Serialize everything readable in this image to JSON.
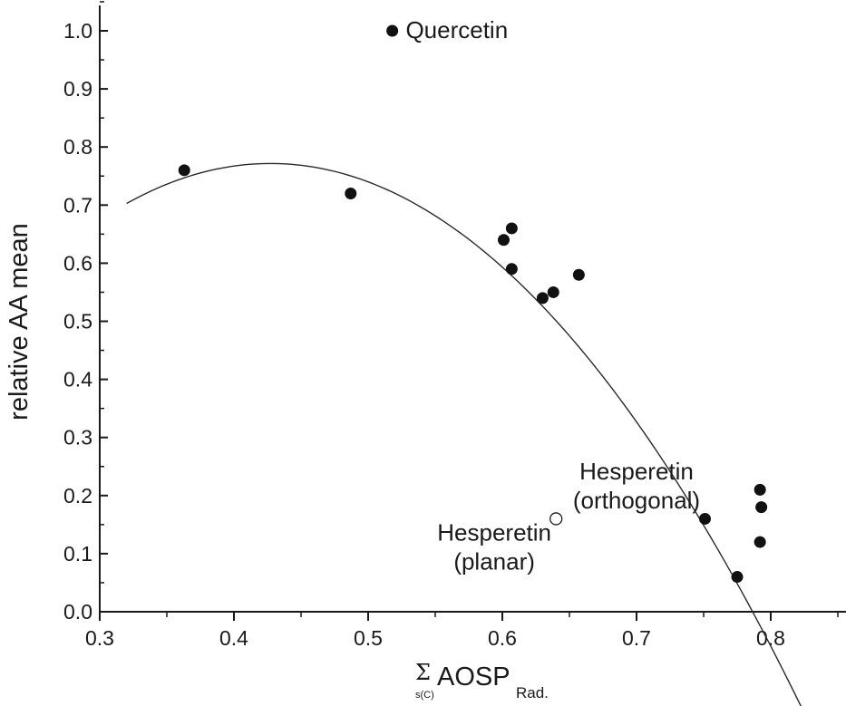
{
  "chart_data": {
    "type": "scatter",
    "title": "",
    "ylabel": "relative AA mean",
    "xlabel": {
      "sigma": "Σ",
      "sigma_sub": "s(C)",
      "main": "AOSP",
      "sub": "Rad."
    },
    "xlim": [
      0.3,
      0.85
    ],
    "ylim": [
      0.0,
      1.05
    ],
    "xticks": [
      0.3,
      0.4,
      0.5,
      0.6,
      0.7,
      0.8
    ],
    "xtick_labels": [
      "0.3",
      "0.4",
      "0.5",
      "0.6",
      "0.7",
      "0.8"
    ],
    "yticks": [
      0.0,
      0.1,
      0.2,
      0.3,
      0.4,
      0.5,
      0.6,
      0.7,
      0.8,
      0.9,
      1.0
    ],
    "ytick_labels": [
      "0.0",
      "0.1",
      "0.2",
      "0.3",
      "0.4",
      "0.5",
      "0.6",
      "0.7",
      "0.8",
      "0.9",
      "1.0"
    ],
    "grid": false,
    "series": [
      {
        "marker": "filled-circle",
        "points": [
          {
            "x": 0.363,
            "y": 0.76
          },
          {
            "x": 0.487,
            "y": 0.72
          },
          {
            "x": 0.518,
            "y": 1.0
          },
          {
            "x": 0.601,
            "y": 0.64
          },
          {
            "x": 0.607,
            "y": 0.66
          },
          {
            "x": 0.607,
            "y": 0.59
          },
          {
            "x": 0.63,
            "y": 0.54
          },
          {
            "x": 0.638,
            "y": 0.55
          },
          {
            "x": 0.657,
            "y": 0.58
          },
          {
            "x": 0.751,
            "y": 0.16
          },
          {
            "x": 0.775,
            "y": 0.06
          },
          {
            "x": 0.792,
            "y": 0.21
          },
          {
            "x": 0.793,
            "y": 0.18
          },
          {
            "x": 0.792,
            "y": 0.12
          }
        ]
      },
      {
        "marker": "open-circle",
        "points": [
          {
            "x": 0.64,
            "y": 0.16
          }
        ]
      }
    ],
    "fit_curve": {
      "type": "quadratic",
      "coefficients": {
        "a": -5.98,
        "b": 5.11,
        "c": -0.32
      },
      "x_range": [
        0.32,
        0.825
      ]
    },
    "annotations": [
      {
        "lines": [
          "Quercetin"
        ],
        "x": 0.528,
        "y": 1.0,
        "align": "start"
      },
      {
        "lines": [
          "Hesperetin",
          "(orthogonal)"
        ],
        "x": 0.7,
        "y": 0.24,
        "align": "middle"
      },
      {
        "lines": [
          "Hesperetin",
          "(planar)"
        ],
        "x": 0.594,
        "y": 0.135,
        "align": "middle"
      }
    ]
  }
}
